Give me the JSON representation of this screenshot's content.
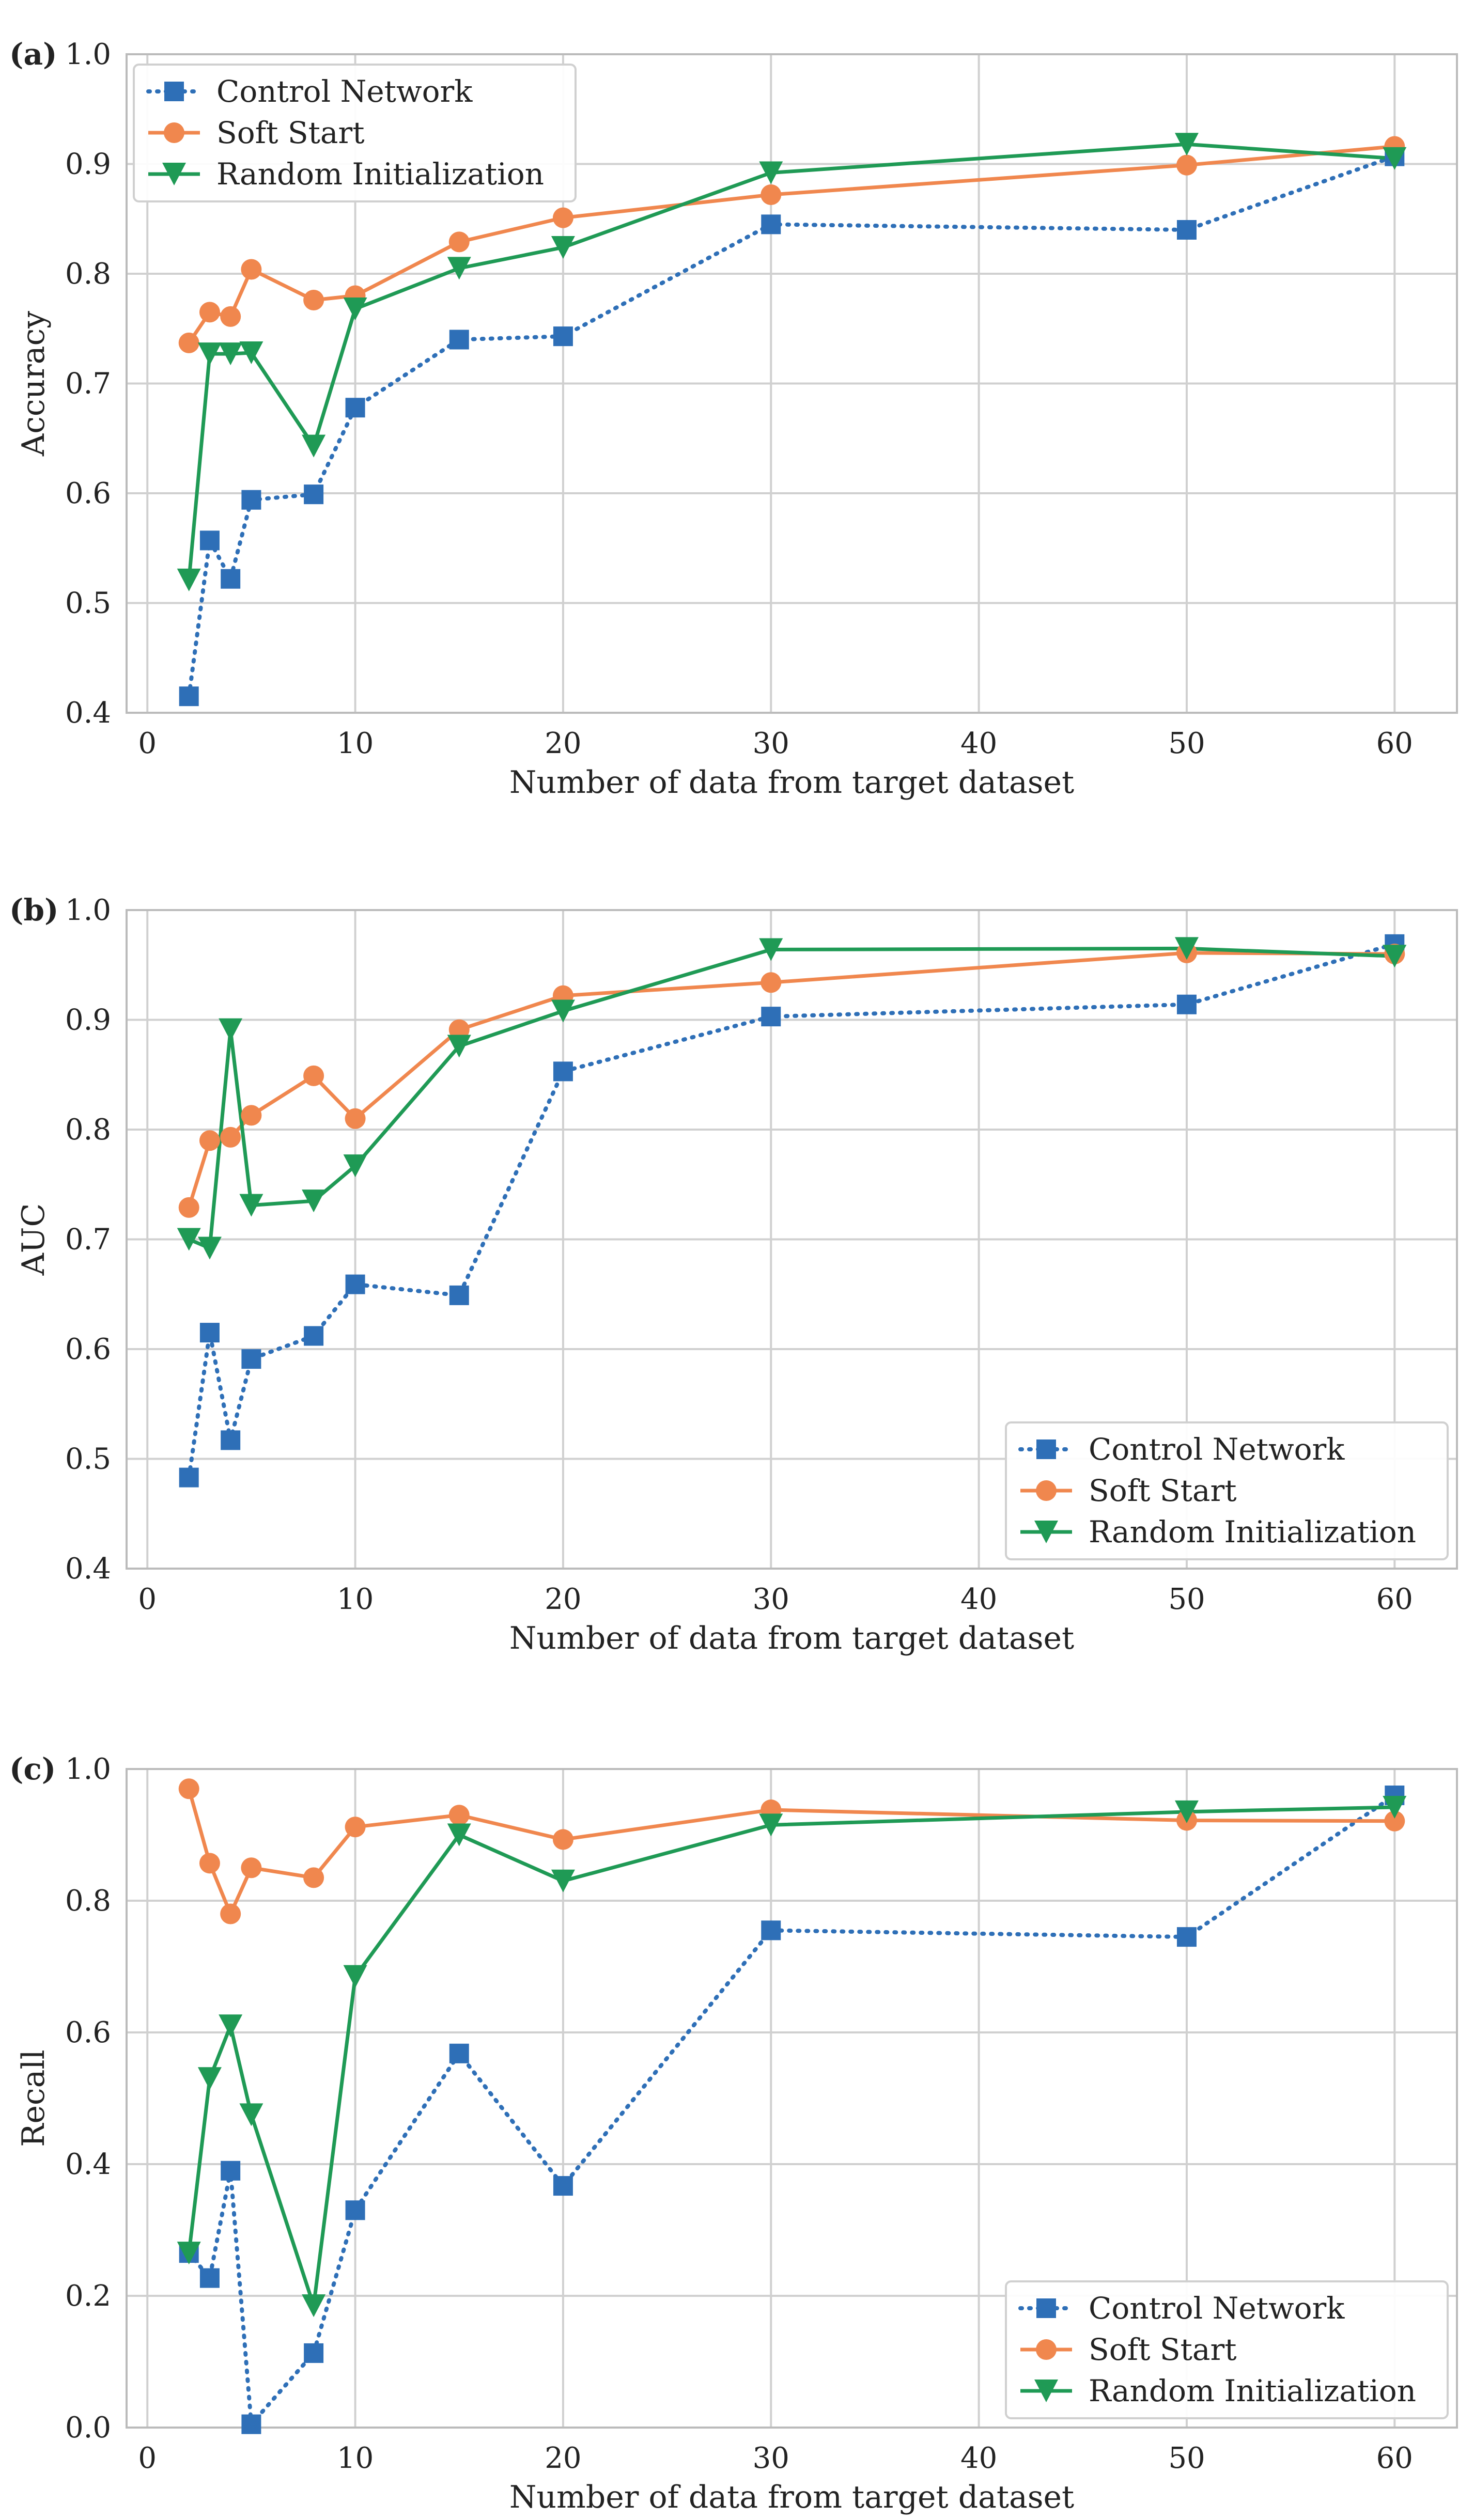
{
  "colors": {
    "control": "#2e6fb7",
    "soft": "#f0874e",
    "random": "#1f9a55",
    "grid": "#d0d0d0",
    "axis": "#bbbbbb",
    "text": "#222222"
  },
  "chart_data": [
    {
      "type": "line",
      "panel_label": "(a)",
      "title": "",
      "xlabel": "Number of data from target dataset",
      "ylabel": "Accuracy",
      "xlim": [
        -1,
        63
      ],
      "ylim": [
        0.4,
        1.0
      ],
      "xticks": [
        0,
        10,
        20,
        30,
        40,
        50,
        60
      ],
      "xtick_labels": [
        "0",
        "10",
        "20",
        "30",
        "40",
        "50",
        "60"
      ],
      "yticks": [
        0.4,
        0.5,
        0.6,
        0.7,
        0.8,
        0.9,
        1.0
      ],
      "ytick_labels": [
        "0.4",
        "0.5",
        "0.6",
        "0.7",
        "0.8",
        "0.9",
        "1.0"
      ],
      "grid": true,
      "legend": "top-left",
      "x": [
        2,
        3,
        4,
        5,
        8,
        10,
        15,
        20,
        30,
        50,
        60
      ],
      "series": [
        {
          "name": "Control Network",
          "key": "control",
          "marker": "square",
          "linestyle": "dotted",
          "values": [
            0.415,
            0.557,
            0.522,
            0.594,
            0.599,
            0.678,
            0.74,
            0.743,
            0.845,
            0.84,
            0.907
          ]
        },
        {
          "name": "Soft Start",
          "key": "soft",
          "marker": "circle",
          "linestyle": "solid",
          "values": [
            0.737,
            0.765,
            0.761,
            0.804,
            0.776,
            0.78,
            0.829,
            0.851,
            0.872,
            0.899,
            0.916
          ]
        },
        {
          "name": "Random Initialization",
          "key": "random",
          "marker": "triangle-down",
          "linestyle": "solid",
          "values": [
            0.521,
            0.727,
            0.727,
            0.728,
            0.643,
            0.768,
            0.805,
            0.824,
            0.892,
            0.918,
            0.905
          ]
        }
      ]
    },
    {
      "type": "line",
      "panel_label": "(b)",
      "title": "",
      "xlabel": "Number of data from target dataset",
      "ylabel": "AUC",
      "xlim": [
        -1,
        63
      ],
      "ylim": [
        0.4,
        1.0
      ],
      "xticks": [
        0,
        10,
        20,
        30,
        40,
        50,
        60
      ],
      "xtick_labels": [
        "0",
        "10",
        "20",
        "30",
        "40",
        "50",
        "60"
      ],
      "yticks": [
        0.4,
        0.5,
        0.6,
        0.7,
        0.8,
        0.9,
        1.0
      ],
      "ytick_labels": [
        "0.4",
        "0.5",
        "0.6",
        "0.7",
        "0.8",
        "0.9",
        "1.0"
      ],
      "grid": true,
      "legend": "bottom-right",
      "x": [
        2,
        3,
        4,
        5,
        8,
        10,
        15,
        20,
        30,
        50,
        60
      ],
      "series": [
        {
          "name": "Control Network",
          "key": "control",
          "marker": "square",
          "linestyle": "dotted",
          "values": [
            0.483,
            0.615,
            0.517,
            0.591,
            0.612,
            0.659,
            0.649,
            0.853,
            0.903,
            0.914,
            0.969
          ]
        },
        {
          "name": "Soft Start",
          "key": "soft",
          "marker": "circle",
          "linestyle": "solid",
          "values": [
            0.729,
            0.79,
            0.793,
            0.813,
            0.849,
            0.81,
            0.891,
            0.922,
            0.934,
            0.961,
            0.96
          ]
        },
        {
          "name": "Random Initialization",
          "key": "random",
          "marker": "triangle-down",
          "linestyle": "solid",
          "values": [
            0.7,
            0.692,
            0.891,
            0.731,
            0.735,
            0.767,
            0.876,
            0.908,
            0.964,
            0.965,
            0.958
          ]
        }
      ]
    },
    {
      "type": "line",
      "panel_label": "(c)",
      "title": "",
      "xlabel": "Number of data from target dataset",
      "ylabel": "Recall",
      "xlim": [
        -1,
        63
      ],
      "ylim": [
        0.0,
        1.0
      ],
      "xticks": [
        0,
        10,
        20,
        30,
        40,
        50,
        60
      ],
      "xtick_labels": [
        "0",
        "10",
        "20",
        "30",
        "40",
        "50",
        "60"
      ],
      "yticks": [
        0.0,
        0.2,
        0.4,
        0.6,
        0.8,
        1.0
      ],
      "ytick_labels": [
        "0.0",
        "0.2",
        "0.4",
        "0.6",
        "0.8",
        "1.0"
      ],
      "grid": true,
      "legend": "bottom-right",
      "x": [
        2,
        3,
        4,
        5,
        8,
        10,
        15,
        20,
        30,
        50,
        60
      ],
      "series": [
        {
          "name": "Control Network",
          "key": "control",
          "marker": "square",
          "linestyle": "dotted",
          "values": [
            0.265,
            0.227,
            0.39,
            0.005,
            0.113,
            0.33,
            0.568,
            0.367,
            0.755,
            0.745,
            0.96
          ]
        },
        {
          "name": "Soft Start",
          "key": "soft",
          "marker": "circle",
          "linestyle": "solid",
          "values": [
            0.97,
            0.857,
            0.78,
            0.85,
            0.835,
            0.912,
            0.93,
            0.893,
            0.938,
            0.922,
            0.921
          ]
        },
        {
          "name": "Random Initialization",
          "key": "random",
          "marker": "triangle-down",
          "linestyle": "solid",
          "values": [
            0.265,
            0.53,
            0.61,
            0.475,
            0.185,
            0.685,
            0.9,
            0.83,
            0.915,
            0.935,
            0.942
          ]
        }
      ]
    }
  ]
}
